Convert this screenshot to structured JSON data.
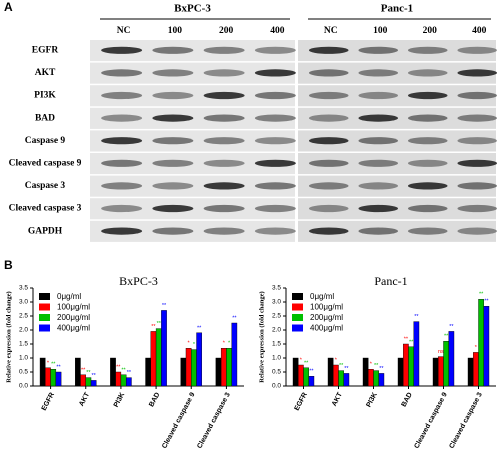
{
  "blot": {
    "label": "A",
    "cell_lines": [
      "BxPC-3",
      "Panc-1"
    ],
    "lanes": [
      "NC",
      "100",
      "200",
      "400"
    ],
    "proteins": [
      "EGFR",
      "AKT",
      "PI3K",
      "BAD",
      "Caspase 9",
      "Cleaved caspase 9",
      "Caspase 3",
      "Cleaved caspase 3",
      "GAPDH"
    ]
  },
  "panel_b_label": "B",
  "chart_data": [
    {
      "type": "bar",
      "title": "BxPC-3",
      "ylabel": "Relative expression (fold change)",
      "categories": [
        "EGFR",
        "AKT",
        "PI3K",
        "BAD",
        "Cleaved caspase 9",
        "Cleaved caspase 3"
      ],
      "series": [
        {
          "name": "0μg/ml",
          "color": "#000000",
          "values": [
            1.0,
            1.0,
            1.0,
            1.0,
            1.0,
            1.0
          ],
          "significance": [
            null,
            null,
            null,
            null,
            null,
            null
          ]
        },
        {
          "name": "100μg/ml",
          "color": "#ff0000",
          "values": [
            0.65,
            0.4,
            0.5,
            1.95,
            1.35,
            1.35
          ],
          "significance": [
            "*",
            "**",
            "**",
            "**",
            "*",
            "*"
          ]
        },
        {
          "name": "200μg/ml",
          "color": "#00c000",
          "values": [
            0.6,
            0.3,
            0.4,
            2.05,
            1.3,
            1.35
          ],
          "significance": [
            "**",
            "**",
            "**",
            "**",
            "*",
            "*"
          ]
        },
        {
          "name": "400μg/ml",
          "color": "#0000ff",
          "values": [
            0.5,
            0.2,
            0.3,
            2.7,
            1.9,
            2.25
          ],
          "significance": [
            "**",
            "**",
            "**",
            "**",
            "**",
            "**"
          ]
        }
      ],
      "ylim": [
        0,
        3.5
      ],
      "yticks": [
        {
          "value": 0,
          "label": "0.0"
        },
        {
          "value": 0.5,
          "label": "0.5"
        },
        {
          "value": 1,
          "label": "1.0"
        },
        {
          "value": 1.5,
          "label": "1.5"
        },
        {
          "value": 2,
          "label": "2.0"
        },
        {
          "value": 2.5,
          "label": "2.5"
        },
        {
          "value": 3,
          "label": "3.0"
        },
        {
          "value": 3.5,
          "label": "3.5"
        }
      ],
      "legend": "upper left"
    },
    {
      "type": "bar",
      "title": "Panc-1",
      "ylabel": "Relative expression (fold change)",
      "categories": [
        "EGFR",
        "AKT",
        "PI3K",
        "BAD",
        "Cleaved caspase 9",
        "Cleaved caspase 3"
      ],
      "series": [
        {
          "name": "0μg/ml",
          "color": "#000000",
          "values": [
            1.0,
            1.0,
            1.0,
            1.0,
            1.0,
            1.0
          ],
          "significance": [
            null,
            null,
            null,
            null,
            null,
            null
          ]
        },
        {
          "name": "100μg/ml",
          "color": "#ff0000",
          "values": [
            0.75,
            0.75,
            0.6,
            1.5,
            1.05,
            1.2
          ],
          "significance": [
            "*",
            "*",
            "*",
            "**",
            "ns",
            "*"
          ]
        },
        {
          "name": "200μg/ml",
          "color": "#00c000",
          "values": [
            0.65,
            0.55,
            0.55,
            1.4,
            1.6,
            3.1
          ],
          "significance": [
            "**",
            "**",
            "**",
            "**",
            "**",
            "**"
          ]
        },
        {
          "name": "400μg/ml",
          "color": "#0000ff",
          "values": [
            0.35,
            0.45,
            0.45,
            2.3,
            1.95,
            2.85
          ],
          "significance": [
            "**",
            "**",
            "**",
            "**",
            "**",
            "**"
          ]
        }
      ],
      "ylim": [
        0,
        3.5
      ],
      "yticks": [
        {
          "value": 0,
          "label": "0.0"
        },
        {
          "value": 0.5,
          "label": "0.5"
        },
        {
          "value": 1,
          "label": "1.0"
        },
        {
          "value": 1.5,
          "label": "1.5"
        },
        {
          "value": 2,
          "label": "2.0"
        },
        {
          "value": 2.5,
          "label": "2.5"
        },
        {
          "value": 3,
          "label": "3.0"
        },
        {
          "value": 3.5,
          "label": "3.5"
        }
      ],
      "legend": "upper left"
    }
  ]
}
